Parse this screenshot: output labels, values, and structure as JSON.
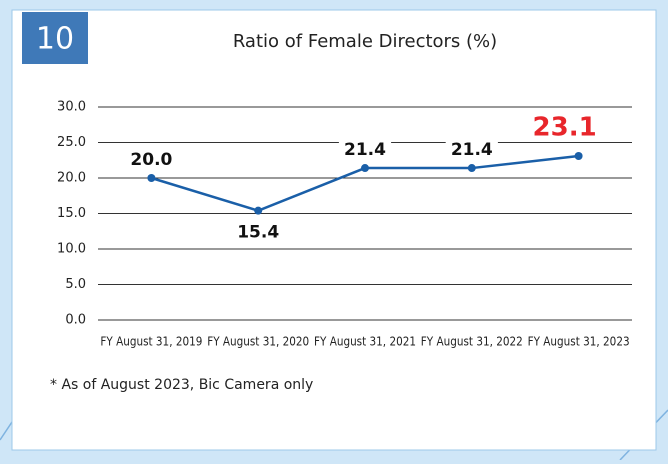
{
  "badge": "10",
  "chart_data": {
    "type": "line",
    "title": "Ratio of Female Directors (%)",
    "categories": [
      "FY August 31, 2019",
      "FY August 31, 2020",
      "FY August 31, 2021",
      "FY August 31, 2022",
      "FY August 31, 2023"
    ],
    "series": [
      {
        "name": "Ratio of Female Directors",
        "color": "#1a5fa8",
        "values": [
          20,
          15.4,
          21.4,
          21.4,
          23.1
        ],
        "value_labels": [
          "20.0",
          "15.4",
          "21.4",
          "21.4",
          "23.1"
        ],
        "value_label_colors": [
          "#111111",
          "#111111",
          "#111111",
          "#111111",
          "#e8262b"
        ]
      }
    ],
    "ylim": [
      0,
      30
    ],
    "yticks": [
      {
        "value": 0,
        "label": "0.0"
      },
      {
        "value": 5,
        "label": "5.0"
      },
      {
        "value": 10,
        "label": "10.0"
      },
      {
        "value": 15,
        "label": "15.0"
      },
      {
        "value": 20,
        "label": "20.0"
      },
      {
        "value": 25,
        "label": "25.0"
      },
      {
        "value": 30,
        "label": "30.0"
      }
    ],
    "grid": true,
    "footnote": "* As of August 2023, Bic Camera only"
  }
}
